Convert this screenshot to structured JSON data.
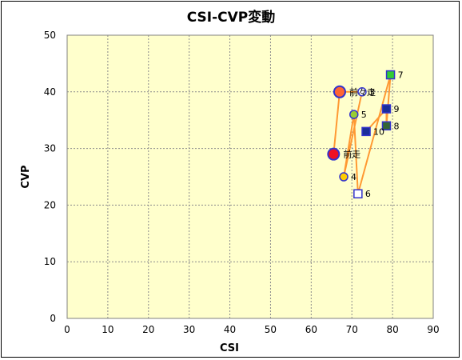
{
  "chart_data": {
    "type": "scatter",
    "title": "CSI-CVP変動",
    "xlabel": "CSI",
    "ylabel": "CVP",
    "xlim": [
      0,
      90
    ],
    "ylim": [
      0,
      50
    ],
    "xticks": [
      0,
      10,
      20,
      30,
      40,
      50,
      60,
      70,
      80,
      90
    ],
    "yticks": [
      0,
      10,
      20,
      30,
      40,
      50
    ],
    "grid": true,
    "plot_background": "#ffffcc",
    "grid_color": "#8c8c8c",
    "line_color": "#ff9933",
    "points": [
      {
        "label": "前々走",
        "x": 67,
        "y": 40,
        "marker": "circle",
        "fill": "#ff6633",
        "stroke": "#3333cc",
        "size": "large"
      },
      {
        "label": "前走",
        "x": 65.5,
        "y": 29,
        "marker": "circle",
        "fill": "#ee1122",
        "stroke": "#3333cc",
        "size": "large"
      },
      {
        "label": "3",
        "x": 72.5,
        "y": 40,
        "marker": "circle",
        "fill": "#ffffff",
        "stroke": "#3333cc",
        "size": "small"
      },
      {
        "label": "4",
        "x": 68,
        "y": 25,
        "marker": "circle",
        "fill": "#ffcc00",
        "stroke": "#3333cc",
        "size": "small"
      },
      {
        "label": "5",
        "x": 70.5,
        "y": 36,
        "marker": "circle",
        "fill": "#99cc33",
        "stroke": "#3333cc",
        "size": "small"
      },
      {
        "label": "6",
        "x": 71.5,
        "y": 22,
        "marker": "square",
        "fill": "#ffffff",
        "stroke": "#3333cc",
        "size": "small"
      },
      {
        "label": "7",
        "x": 79.5,
        "y": 43,
        "marker": "square",
        "fill": "#33cc33",
        "stroke": "#3333cc",
        "size": "small"
      },
      {
        "label": "8",
        "x": 78.5,
        "y": 34,
        "marker": "square",
        "fill": "#336633",
        "stroke": "#3333cc",
        "size": "small"
      },
      {
        "label": "9",
        "x": 78.5,
        "y": 37,
        "marker": "square",
        "fill": "#1a2d99",
        "stroke": "#3333cc",
        "size": "small"
      },
      {
        "label": "10",
        "x": 73.5,
        "y": 33,
        "marker": "square",
        "fill": "#1a2d99",
        "stroke": "#3333cc",
        "size": "small"
      }
    ],
    "connection_order": [
      "10",
      "9",
      "8",
      "7",
      "6",
      "5",
      "4",
      "3",
      "前々走",
      "前走"
    ]
  }
}
